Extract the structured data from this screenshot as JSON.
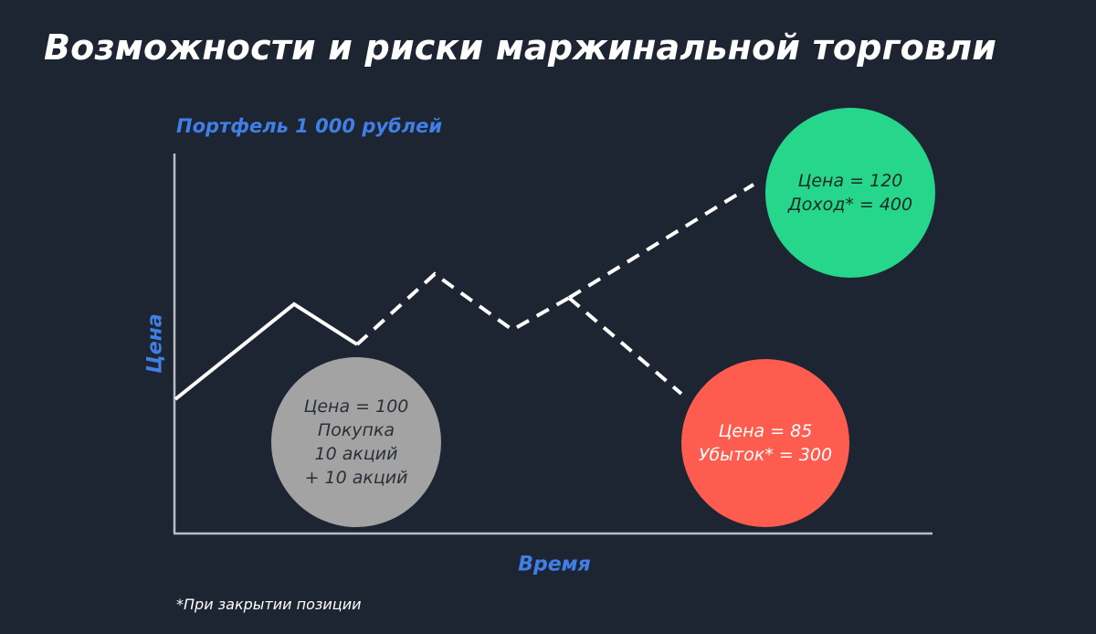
{
  "title": "Возможности и риски маржинальной торговли",
  "portfolio_label": "Портфель 1 000 рублей",
  "y_axis_label": "Цена",
  "x_axis_label": "Время",
  "footnote": "*При закрытии позиции",
  "bubbles": {
    "buy": {
      "lines": [
        "Цена = 100",
        "Покупка",
        "10 акций",
        "+ 10 акций"
      ],
      "color": "#a3a3a3",
      "text_color": "#2a2f38"
    },
    "profit": {
      "lines": [
        "Цена = 120",
        "Доход* = 400"
      ],
      "color": "#26d68a",
      "text_color": "#1c2a24"
    },
    "loss": {
      "lines": [
        "Цена = 85",
        "Убыток* = 300"
      ],
      "color": "#ff5c50",
      "text_color": "#ffffff"
    }
  },
  "colors": {
    "background": "#1e2532",
    "accent": "#3f7fe6",
    "line": "#ffffff",
    "axis": "#b8bcc4"
  }
}
